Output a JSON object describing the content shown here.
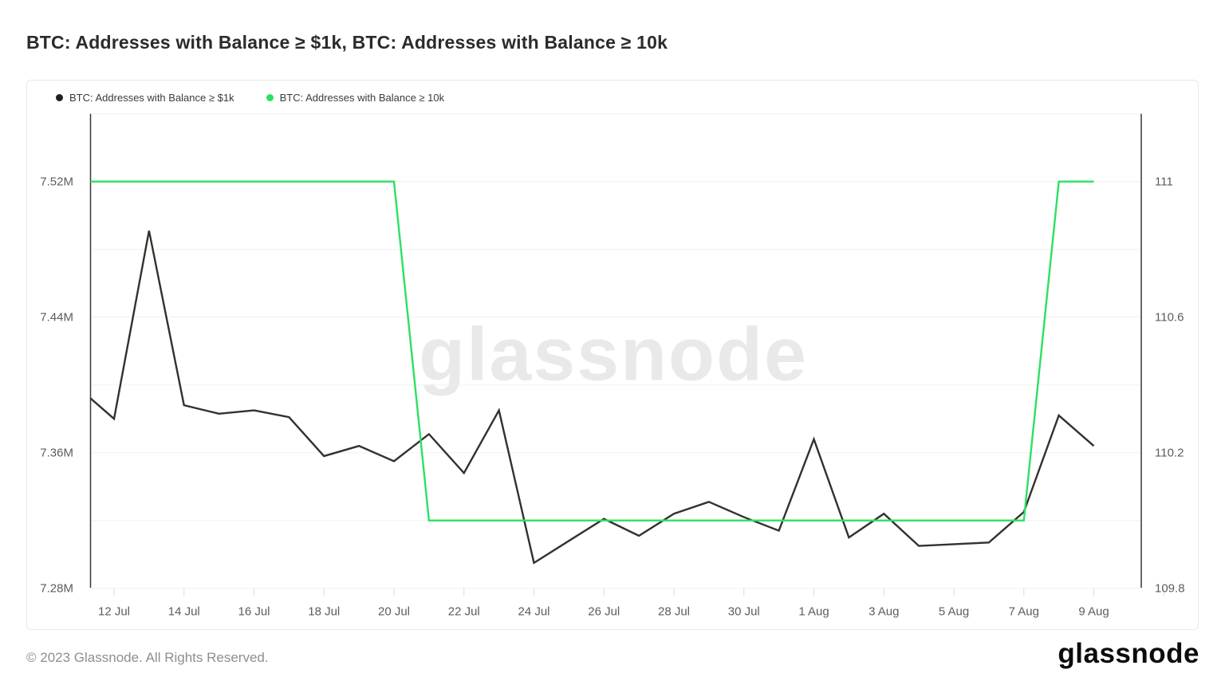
{
  "page": {
    "title": "BTC: Addresses with Balance ≥ $1k, BTC: Addresses with Balance ≥ 10k",
    "watermark": "glassnode",
    "footer_copyright": "© 2023 Glassnode. All Rights Reserved.",
    "brand_logo": "glassnode"
  },
  "legend": [
    {
      "label": "BTC: Addresses with Balance ≥ $1k",
      "color": "#1f1f1f"
    },
    {
      "label": "BTC: Addresses with Balance ≥ 10k",
      "color": "#2be163"
    }
  ],
  "colors": {
    "series_1k": "#35302c",
    "series_10k": "#2be163",
    "gridline": "#f0f0f0",
    "axis_line": "#3a3631",
    "tick_mark": "#dcdcdc",
    "axis_label": "#5c5c5c"
  },
  "chart_data": {
    "type": "line",
    "title": "BTC: Addresses with Balance ≥ $1k, BTC: Addresses with Balance ≥ 10k",
    "grid": true,
    "legend_position": "top-left",
    "x": [
      "11 Jul",
      "12 Jul",
      "13 Jul",
      "14 Jul",
      "15 Jul",
      "16 Jul",
      "17 Jul",
      "18 Jul",
      "19 Jul",
      "20 Jul",
      "21 Jul",
      "22 Jul",
      "23 Jul",
      "24 Jul",
      "25 Jul",
      "26 Jul",
      "27 Jul",
      "28 Jul",
      "29 Jul",
      "30 Jul",
      "31 Jul",
      "1 Aug",
      "2 Aug",
      "3 Aug",
      "4 Aug",
      "5 Aug",
      "6 Aug",
      "7 Aug",
      "8 Aug",
      "9 Aug"
    ],
    "x_tick_labels": [
      "12 Jul",
      "14 Jul",
      "16 Jul",
      "18 Jul",
      "20 Jul",
      "22 Jul",
      "24 Jul",
      "26 Jul",
      "28 Jul",
      "30 Jul",
      "1 Aug",
      "3 Aug",
      "5 Aug",
      "7 Aug",
      "9 Aug"
    ],
    "left_axis": {
      "tick_labels": [
        "7.52M",
        "7.44M",
        "7.36M",
        "7.28M"
      ],
      "tick_values": [
        7.52,
        7.44,
        7.36,
        7.28
      ],
      "range_note": "millions of addresses"
    },
    "right_axis": {
      "tick_labels": [
        "111",
        "110.6",
        "110.2",
        "109.8"
      ],
      "tick_values": [
        111,
        110.6,
        110.2,
        109.8
      ],
      "range_note": "address count"
    },
    "series": [
      {
        "name": "BTC: Addresses with Balance ≥ $1k",
        "axis": "left",
        "color": "#35302c",
        "unit": "M",
        "values": [
          7.398,
          7.38,
          7.491,
          7.388,
          7.383,
          7.385,
          7.381,
          7.358,
          7.364,
          7.355,
          7.371,
          7.348,
          7.385,
          7.295,
          7.308,
          7.321,
          7.311,
          7.324,
          7.331,
          7.322,
          7.314,
          7.368,
          7.31,
          7.324,
          7.305,
          7.306,
          7.307,
          7.325,
          7.382,
          7.364
        ]
      },
      {
        "name": "BTC: Addresses with Balance ≥ 10k",
        "axis": "right",
        "color": "#2be163",
        "unit": "",
        "values": [
          111,
          111,
          111,
          111,
          111,
          111,
          111,
          111,
          111,
          111,
          110,
          110,
          110,
          110,
          110,
          110,
          110,
          110,
          110,
          110,
          110,
          110,
          110,
          110,
          110,
          110,
          110,
          110,
          111,
          111
        ]
      }
    ]
  }
}
